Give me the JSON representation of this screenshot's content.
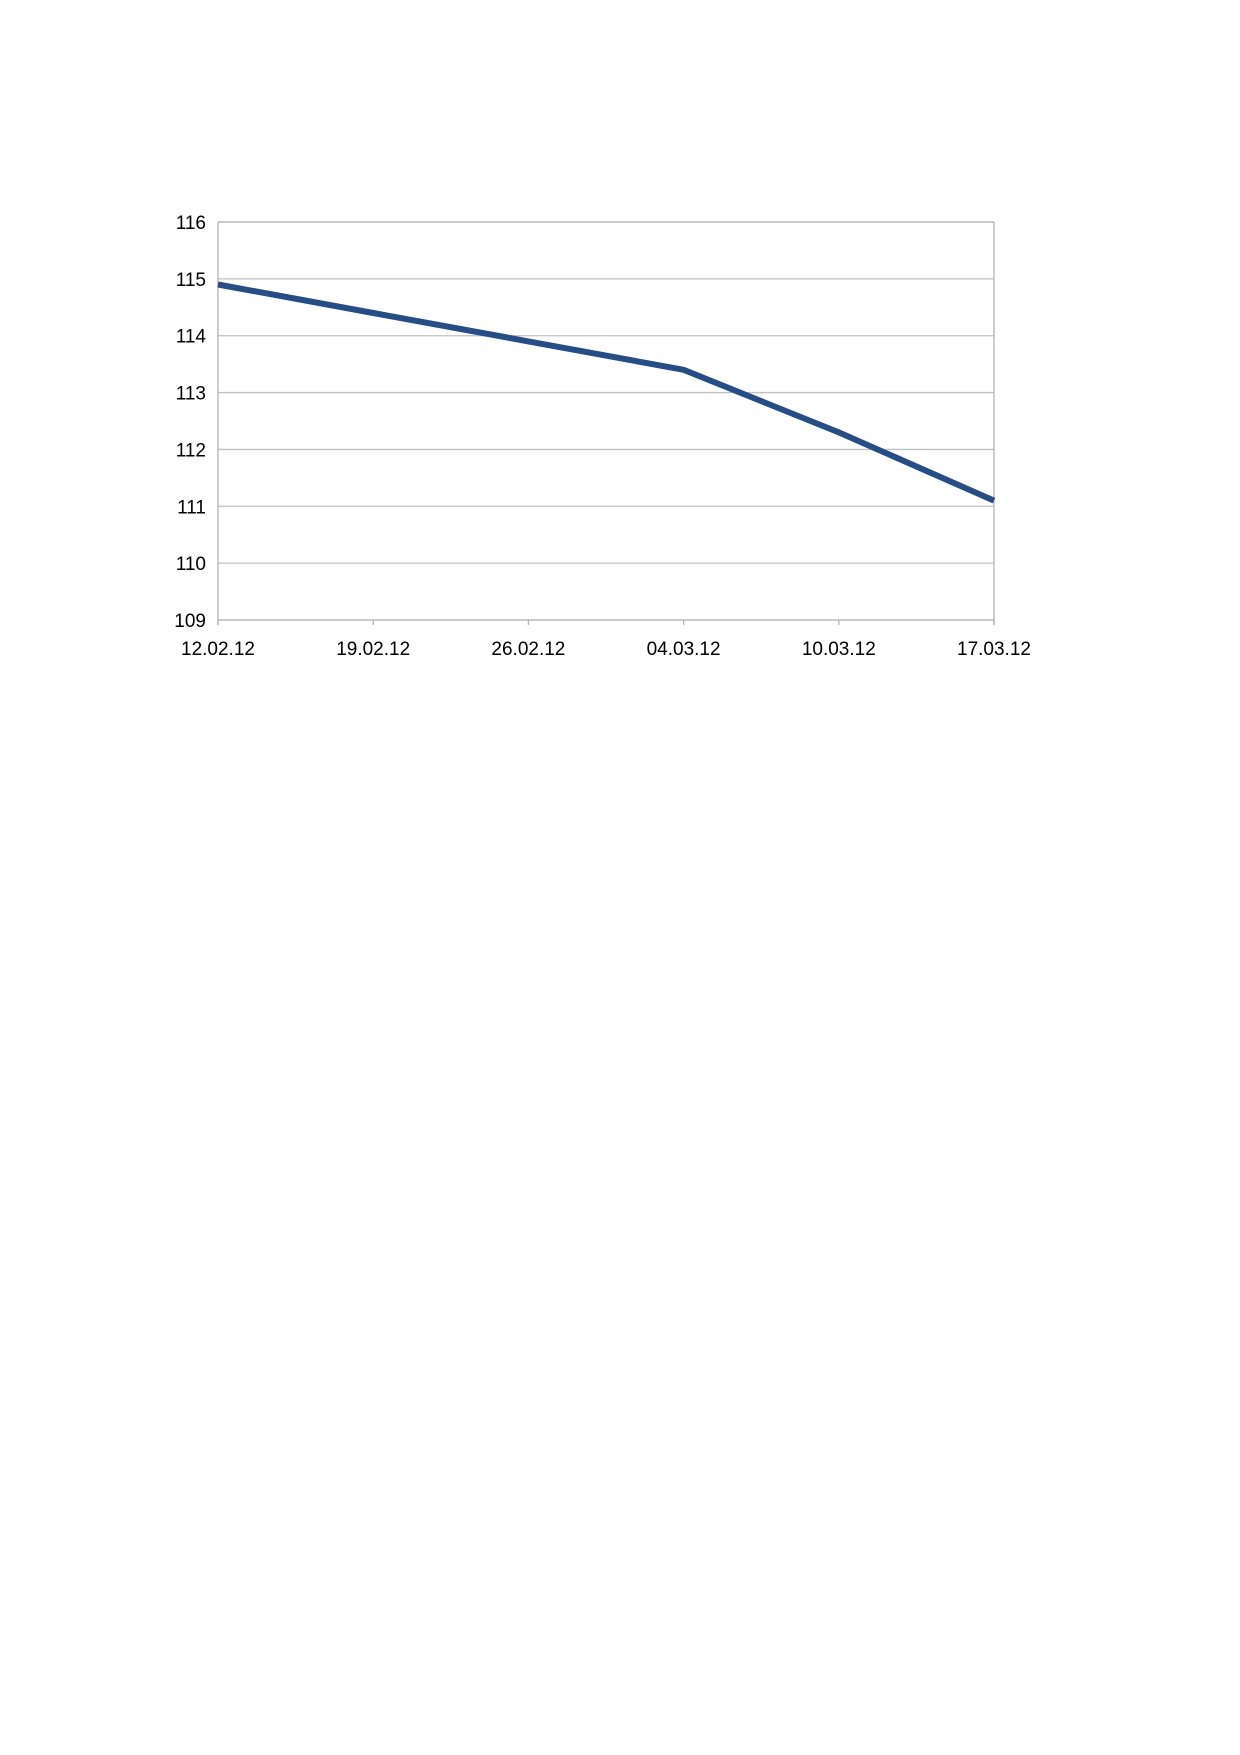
{
  "chart_data": {
    "type": "line",
    "x": [
      "12.02.12",
      "19.02.12",
      "26.02.12",
      "04.03.12",
      "10.03.12",
      "17.03.12"
    ],
    "series": [
      {
        "values": [
          114.9,
          114.4,
          113.9,
          113.4,
          112.3,
          111.1
        ],
        "color": "#264d85"
      }
    ],
    "ylim": [
      109,
      116
    ],
    "yticks": [
      "109",
      "110",
      "111",
      "112",
      "113",
      "114",
      "115",
      "116"
    ],
    "xticks": [
      "12.02.12",
      "19.02.12",
      "26.02.12",
      "04.03.12",
      "10.03.12",
      "17.03.12"
    ],
    "grid": true,
    "gridColor": "#c0c0c0",
    "axisColor": "#b3b3b3"
  }
}
